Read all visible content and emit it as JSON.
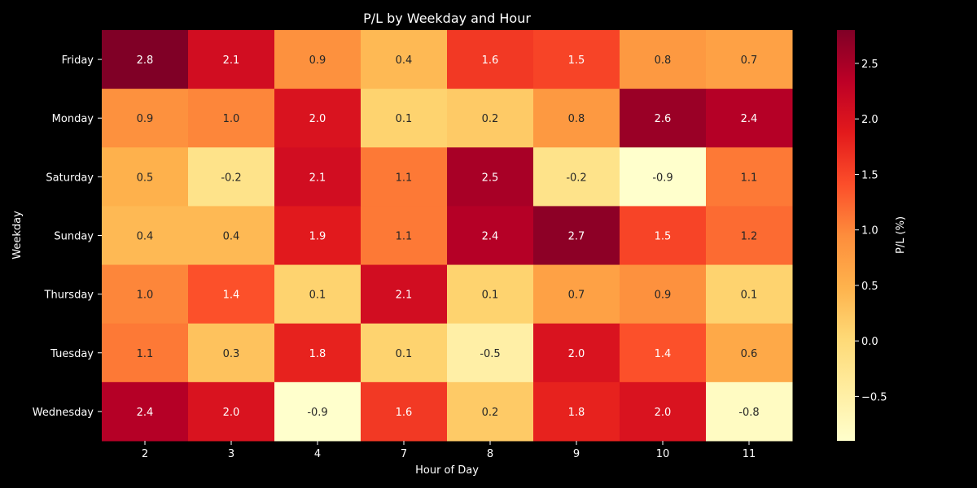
{
  "chart_data": {
    "type": "heatmap",
    "title": "P/L by Weekday and Hour",
    "xlabel": "Hour of Day",
    "ylabel": "Weekday",
    "x_categories": [
      "2",
      "3",
      "4",
      "7",
      "8",
      "9",
      "10",
      "11"
    ],
    "y_categories": [
      "Friday",
      "Monday",
      "Saturday",
      "Sunday",
      "Thursday",
      "Tuesday",
      "Wednesday"
    ],
    "values": [
      [
        2.8,
        2.1,
        0.9,
        0.4,
        1.6,
        1.5,
        0.8,
        0.7
      ],
      [
        0.9,
        1.0,
        2.0,
        0.1,
        0.2,
        0.8,
        2.6,
        2.4
      ],
      [
        0.5,
        -0.2,
        2.1,
        1.1,
        2.5,
        -0.2,
        -0.9,
        1.1
      ],
      [
        0.4,
        0.4,
        1.9,
        1.1,
        2.4,
        2.7,
        1.5,
        1.2
      ],
      [
        1.0,
        1.4,
        0.1,
        2.1,
        0.1,
        0.7,
        0.9,
        0.1
      ],
      [
        1.1,
        0.3,
        1.8,
        0.1,
        -0.5,
        2.0,
        1.4,
        0.6
      ],
      [
        2.4,
        2.0,
        -0.9,
        1.6,
        0.2,
        1.8,
        2.0,
        -0.8
      ]
    ],
    "value_labels": [
      [
        "2.8",
        "2.1",
        "0.9",
        "0.4",
        "1.6",
        "1.5",
        "0.8",
        "0.7"
      ],
      [
        "0.9",
        "1.0",
        "2.0",
        "0.1",
        "0.2",
        "0.8",
        "2.6",
        "2.4"
      ],
      [
        "0.5",
        "-0.2",
        "2.1",
        "1.1",
        "2.5",
        "-0.2",
        "-0.9",
        "1.1"
      ],
      [
        "0.4",
        "0.4",
        "1.9",
        "1.1",
        "2.4",
        "2.7",
        "1.5",
        "1.2"
      ],
      [
        "1.0",
        "1.4",
        "0.1",
        "2.1",
        "0.1",
        "0.7",
        "0.9",
        "0.1"
      ],
      [
        "1.1",
        "0.3",
        "1.8",
        "0.1",
        "-0.5",
        "2.0",
        "1.4",
        "0.6"
      ],
      [
        "2.4",
        "2.0",
        "-0.9",
        "1.6",
        "0.2",
        "1.8",
        "2.0",
        "-0.8"
      ]
    ],
    "colormap": "YlOrRd",
    "vmin": -0.9,
    "vmax": 2.8,
    "colorbar": {
      "label": "P/L (%)",
      "ticks": [
        -0.5,
        0.0,
        0.5,
        1.0,
        1.5,
        2.0,
        2.5
      ],
      "tick_labels": [
        "−0.5",
        "0.0",
        "0.5",
        "1.0",
        "1.5",
        "2.0",
        "2.5"
      ]
    }
  }
}
